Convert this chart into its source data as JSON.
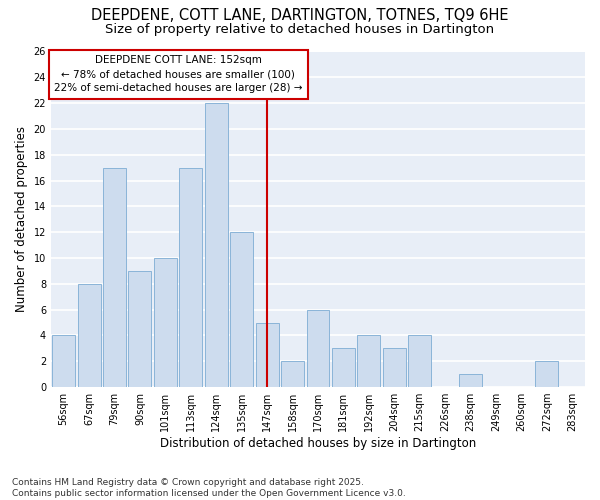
{
  "title": "DEEPDENE, COTT LANE, DARTINGTON, TOTNES, TQ9 6HE",
  "subtitle": "Size of property relative to detached houses in Dartington",
  "xlabel": "Distribution of detached houses by size in Dartington",
  "ylabel": "Number of detached properties",
  "categories": [
    "56sqm",
    "67sqm",
    "79sqm",
    "90sqm",
    "101sqm",
    "113sqm",
    "124sqm",
    "135sqm",
    "147sqm",
    "158sqm",
    "170sqm",
    "181sqm",
    "192sqm",
    "204sqm",
    "215sqm",
    "226sqm",
    "238sqm",
    "249sqm",
    "260sqm",
    "272sqm",
    "283sqm"
  ],
  "values": [
    4,
    8,
    17,
    9,
    10,
    17,
    22,
    12,
    5,
    2,
    6,
    3,
    4,
    3,
    4,
    0,
    1,
    0,
    0,
    2,
    0
  ],
  "bar_color": "#cddcee",
  "bar_edge_color": "#8ab4d8",
  "vline_x_index": 8,
  "vline_color": "#cc0000",
  "annotation_line1": "DEEPDENE COTT LANE: 152sqm",
  "annotation_line2": "← 78% of detached houses are smaller (100)",
  "annotation_line3": "22% of semi-detached houses are larger (28) →",
  "annotation_box_color": "#cc0000",
  "ylim": [
    0,
    26
  ],
  "yticks": [
    0,
    2,
    4,
    6,
    8,
    10,
    12,
    14,
    16,
    18,
    20,
    22,
    24,
    26
  ],
  "footer": "Contains HM Land Registry data © Crown copyright and database right 2025.\nContains public sector information licensed under the Open Government Licence v3.0.",
  "background_color": "#ffffff",
  "plot_bg_color": "#e8eef7",
  "grid_color": "#ffffff",
  "title_fontsize": 10.5,
  "subtitle_fontsize": 9.5,
  "label_fontsize": 8.5,
  "tick_fontsize": 7,
  "footer_fontsize": 6.5,
  "annotation_fontsize": 7.5
}
